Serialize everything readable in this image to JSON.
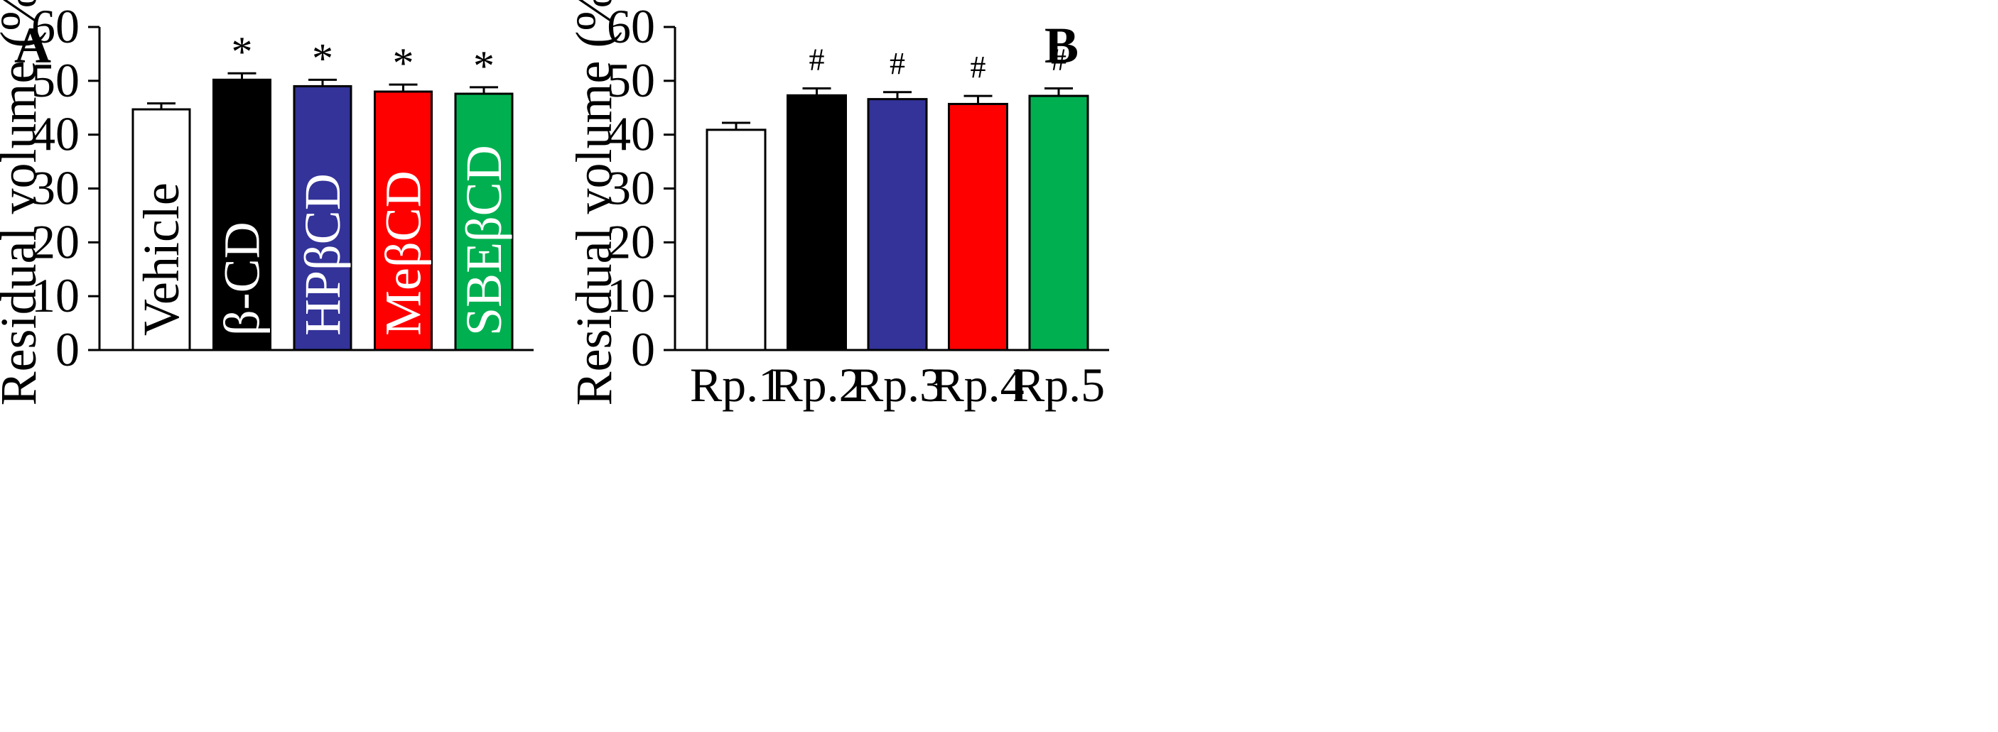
{
  "colors": {
    "white": "#ffffff",
    "black": "#000000",
    "blue": "#333399",
    "red": "#ff0000",
    "green": "#00b050"
  },
  "chart_data": [
    {
      "type": "bar",
      "panel": "A",
      "title": "",
      "xlabel": "",
      "ylabel": "Residual  volume  (%)",
      "ylim": [
        0,
        60
      ],
      "yticks": [
        0,
        10,
        20,
        30,
        40,
        50,
        60
      ],
      "grid": false,
      "categories": [
        "Vehicle",
        "β-CD",
        "HPβCD",
        "MeβCD",
        "SBEβCD"
      ],
      "label_placement": "inside-bar",
      "values": [
        44.7,
        50.2,
        49.0,
        48.0,
        47.6
      ],
      "errors": [
        1.1,
        1.2,
        1.2,
        1.3,
        1.2
      ],
      "fills": [
        "white",
        "black",
        "blue",
        "red",
        "green"
      ],
      "label_colors": [
        "black",
        "white",
        "white",
        "white",
        "white"
      ],
      "markers": [
        "",
        "*",
        "*",
        "*",
        "*"
      ]
    },
    {
      "type": "bar",
      "panel": "B",
      "title": "",
      "xlabel": "",
      "ylabel": "Residual  volume  (%)",
      "ylim": [
        0,
        60
      ],
      "yticks": [
        0,
        10,
        20,
        30,
        40,
        50,
        60
      ],
      "grid": false,
      "categories": [
        "Rp.1",
        "Rp.2",
        "Rp.3",
        "Rp.4",
        "Rp.5"
      ],
      "label_placement": "below-axis",
      "values": [
        40.9,
        47.3,
        46.6,
        45.7,
        47.2
      ],
      "errors": [
        1.3,
        1.3,
        1.3,
        1.5,
        1.4
      ],
      "fills": [
        "white",
        "black",
        "blue",
        "red",
        "green"
      ],
      "label_colors": [
        "black",
        "black",
        "black",
        "black",
        "black"
      ],
      "markers": [
        "",
        "#",
        "#",
        "#",
        "#"
      ]
    }
  ]
}
